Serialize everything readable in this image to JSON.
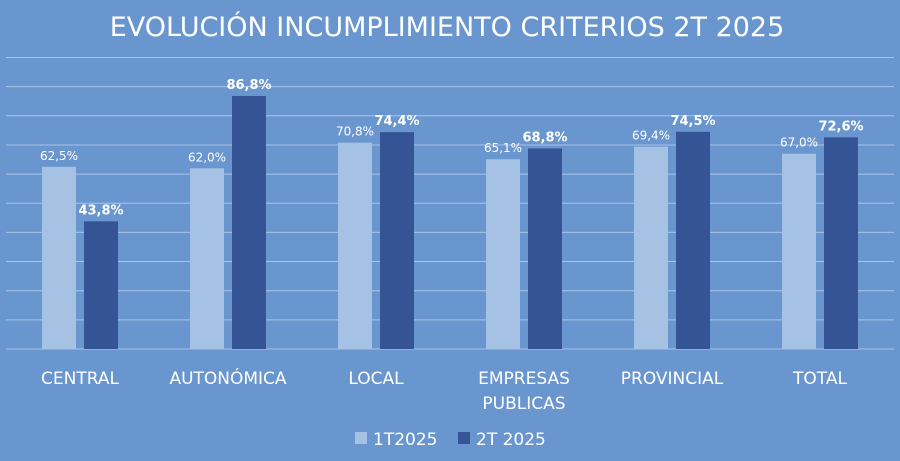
{
  "chart_data": {
    "type": "bar",
    "title": "EVOLUCIÓN INCUMPLIMIENTO CRITERIOS 2T 2025",
    "categories": [
      [
        "CENTRAL"
      ],
      [
        "AUTONÓMICA"
      ],
      [
        "LOCAL"
      ],
      [
        "EMPRESAS",
        "PUBLICAS"
      ],
      [
        "PROVINCIAL"
      ],
      [
        "TOTAL"
      ]
    ],
    "series": [
      {
        "name": "1T2025",
        "color": "#a5c1e4",
        "values": [
          62.5,
          62.0,
          70.8,
          65.1,
          69.4,
          67.0
        ],
        "labels": [
          "62,5%",
          "62,0%",
          "70,8%",
          "65,1%",
          "69,4%",
          "67,0%"
        ],
        "label_bold": false
      },
      {
        "name": "2T 2025",
        "color": "#355496",
        "values": [
          43.8,
          86.8,
          74.4,
          68.8,
          74.5,
          72.6
        ],
        "labels": [
          "43,8%",
          "86,8%",
          "74,4%",
          "68,8%",
          "74,5%",
          "72,6%"
        ],
        "label_bold": true
      }
    ],
    "ylim": [
      0,
      100
    ],
    "grid": true,
    "legend_position": "bottom"
  }
}
